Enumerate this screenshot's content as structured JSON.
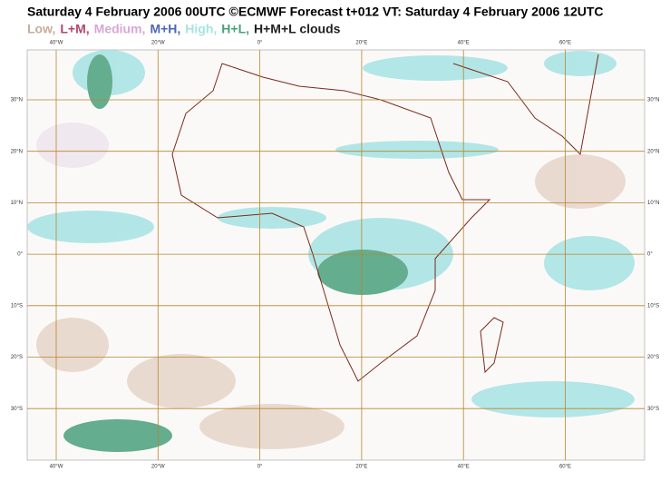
{
  "header": {
    "title": "Saturday 4 February 2006 00UTC ©ECMWF Forecast t+012 VT: Saturday 4 February 2006 12UTC",
    "legend": [
      {
        "text": "Low,",
        "color": "#c9ab98"
      },
      {
        "text": "L+M,",
        "color": "#b2456e"
      },
      {
        "text": "Medium,",
        "color": "#d9a6d6"
      },
      {
        "text": "M+H,",
        "color": "#4d68b0"
      },
      {
        "text": "High,",
        "color": "#a6e3e3"
      },
      {
        "text": "H+L,",
        "color": "#4aa07c"
      },
      {
        "text": "H+M+L clouds",
        "color": "#222222"
      }
    ]
  },
  "map": {
    "longitude_labels": [
      "40°W",
      "20°W",
      "0°",
      "20°E",
      "40°E",
      "60°E"
    ],
    "latitude_labels": [
      "30°N",
      "20°N",
      "10°N",
      "0°",
      "10°S",
      "20°S",
      "30°S"
    ]
  }
}
